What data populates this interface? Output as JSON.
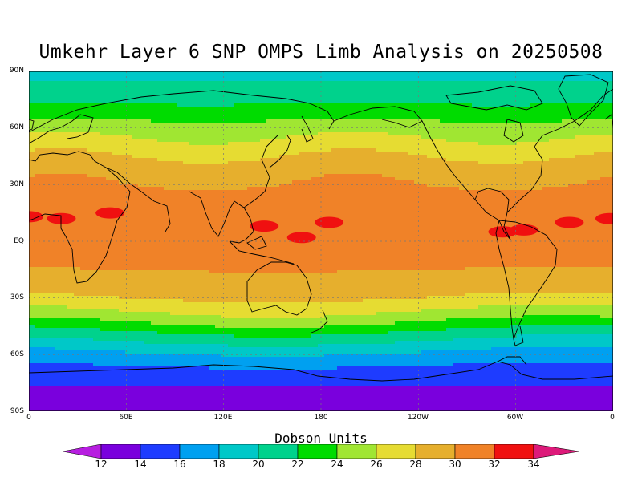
{
  "title": "Umkehr Layer 6 SNP OMPS Limb Analysis on 20250508",
  "units_label": "Dobson Units",
  "lat_labels": [
    "90N",
    "60N",
    "30N",
    "EQ",
    "30S",
    "60S",
    "90S"
  ],
  "lon_labels": [
    "0",
    "60E",
    "120E",
    "180",
    "120W",
    "60W",
    "0"
  ],
  "colorbar": {
    "ticks": [
      "12",
      "14",
      "16",
      "18",
      "20",
      "22",
      "24",
      "26",
      "28",
      "30",
      "32",
      "34"
    ],
    "colors": [
      "#b71ee0",
      "#7a00dd",
      "#1e3cff",
      "#00a0f0",
      "#00c8c8",
      "#00d28c",
      "#00dc00",
      "#a0e632",
      "#e6dc32",
      "#e6af2d",
      "#f08228",
      "#f01010",
      "#dd1a7a"
    ]
  },
  "chart_data": {
    "type": "heatmap",
    "title": "Umkehr Layer 6 SNP OMPS Limb Analysis on 20250508",
    "units": "Dobson Units",
    "lat_range": [
      -90,
      90
    ],
    "lon_range": [
      0,
      360
    ],
    "levels": [
      12,
      14,
      16,
      18,
      20,
      22,
      24,
      26,
      28,
      30,
      32,
      34
    ],
    "zonal_profile": [
      {
        "lat": 90,
        "value": 19.5
      },
      {
        "lat": 80,
        "value": 20.5
      },
      {
        "lat": 70,
        "value": 22.5
      },
      {
        "lat": 60,
        "value": 25
      },
      {
        "lat": 50,
        "value": 27
      },
      {
        "lat": 40,
        "value": 29
      },
      {
        "lat": 30,
        "value": 30
      },
      {
        "lat": 20,
        "value": 31
      },
      {
        "lat": 10,
        "value": 31.5
      },
      {
        "lat": 0,
        "value": 31
      },
      {
        "lat": -10,
        "value": 30.5
      },
      {
        "lat": -20,
        "value": 29.5
      },
      {
        "lat": -30,
        "value": 28
      },
      {
        "lat": -40,
        "value": 25
      },
      {
        "lat": -50,
        "value": 21
      },
      {
        "lat": -60,
        "value": 17.5
      },
      {
        "lat": -70,
        "value": 15
      },
      {
        "lat": -80,
        "value": 13.5
      },
      {
        "lat": -90,
        "value": 13
      }
    ],
    "maxima_above_32": [
      {
        "lon": 0,
        "lat": 13
      },
      {
        "lon": 20,
        "lat": 12
      },
      {
        "lon": 50,
        "lat": 15
      },
      {
        "lon": 145,
        "lat": 8
      },
      {
        "lon": 185,
        "lat": 10
      },
      {
        "lon": 168,
        "lat": 2
      },
      {
        "lon": 292,
        "lat": 5
      },
      {
        "lon": 305,
        "lat": 6
      },
      {
        "lon": 333,
        "lat": 10
      },
      {
        "lon": 358,
        "lat": 12
      }
    ]
  }
}
